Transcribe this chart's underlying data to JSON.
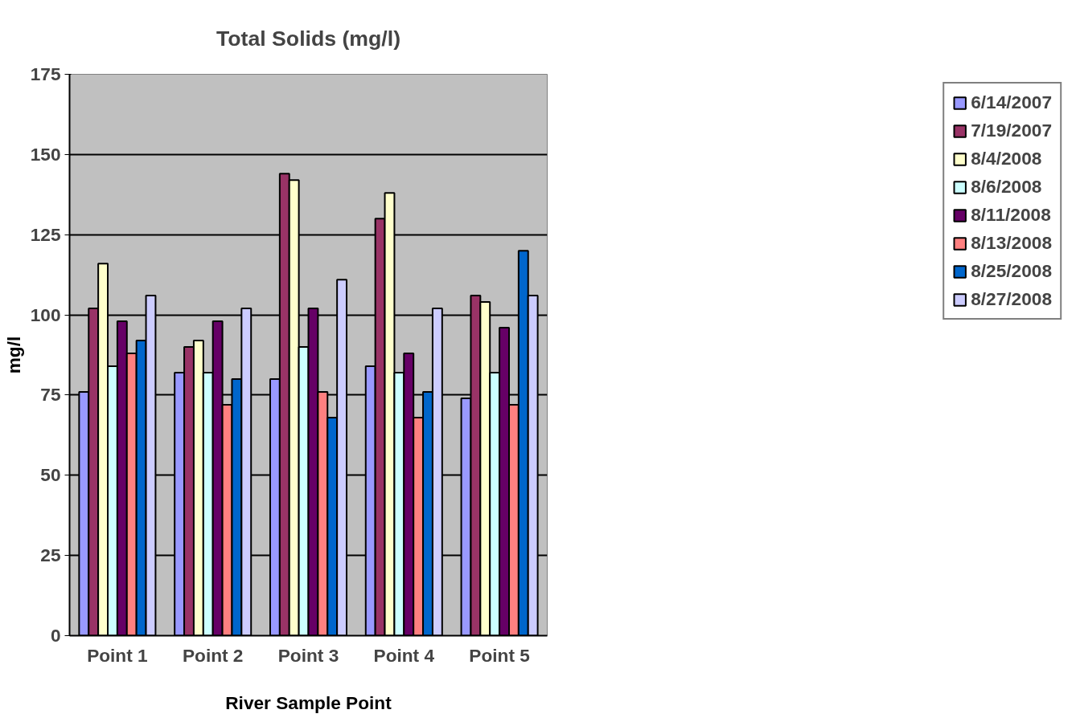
{
  "chart_data": {
    "type": "bar",
    "title": "Total Solids (mg/l)",
    "xlabel": "River Sample Point",
    "ylabel": "mg/l",
    "categories": [
      "Point 1",
      "Point 2",
      "Point 3",
      "Point 4",
      "Point 5"
    ],
    "series": [
      {
        "name": "6/14/2007",
        "color": "#9999ff",
        "values": [
          76,
          82,
          80,
          84,
          74
        ]
      },
      {
        "name": "7/19/2007",
        "color": "#993366",
        "values": [
          102,
          90,
          144,
          130,
          106
        ]
      },
      {
        "name": "8/4/2008",
        "color": "#ffffcc",
        "values": [
          116,
          92,
          142,
          138,
          104
        ]
      },
      {
        "name": "8/6/2008",
        "color": "#ccffff",
        "values": [
          84,
          82,
          90,
          82,
          82
        ]
      },
      {
        "name": "8/11/2008",
        "color": "#660066",
        "values": [
          98,
          98,
          102,
          88,
          96
        ]
      },
      {
        "name": "8/13/2008",
        "color": "#ff8080",
        "values": [
          88,
          72,
          76,
          68,
          72
        ]
      },
      {
        "name": "8/25/2008",
        "color": "#0066cc",
        "values": [
          92,
          80,
          68,
          76,
          120
        ]
      },
      {
        "name": "8/27/2008",
        "color": "#ccccff",
        "values": [
          106,
          102,
          111,
          102,
          106
        ]
      }
    ],
    "ylim": [
      0,
      175
    ],
    "yticks": [
      0,
      25,
      50,
      75,
      100,
      125,
      150,
      175
    ],
    "grid": "y",
    "legend": "right"
  }
}
